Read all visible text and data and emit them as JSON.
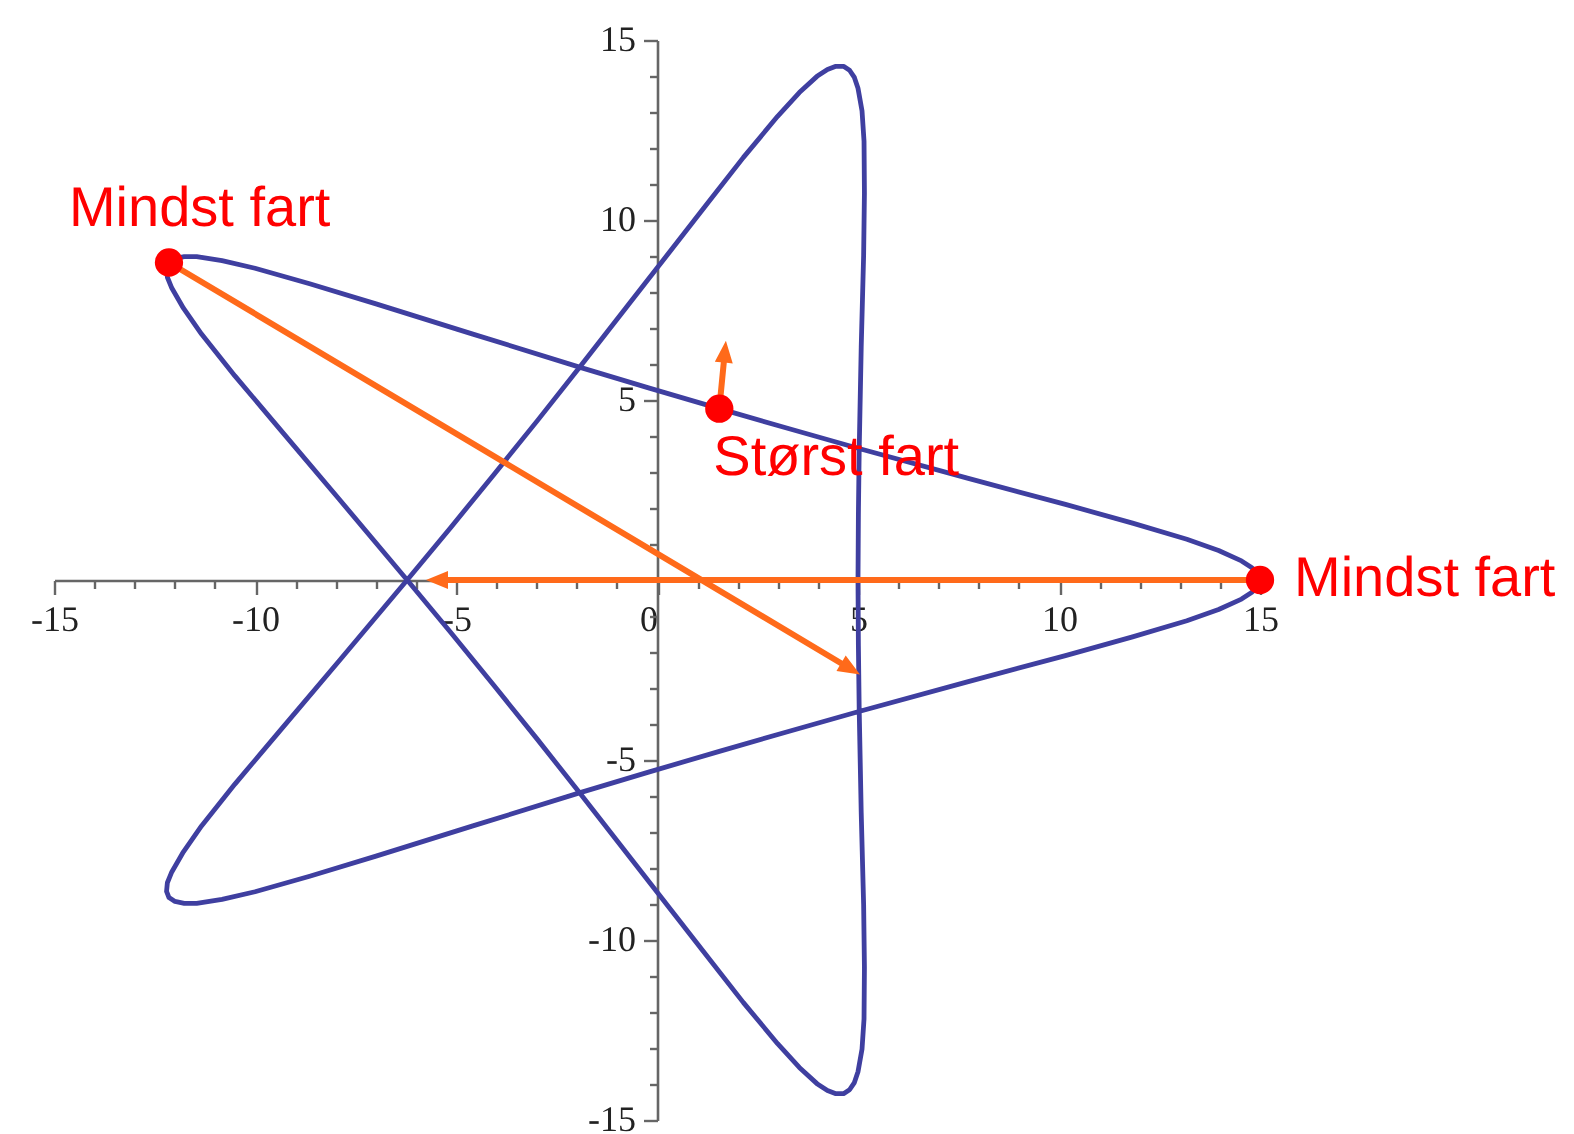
{
  "chart_data": {
    "type": "line",
    "xlim": [
      -15,
      15
    ],
    "ylim": [
      -15,
      15
    ],
    "xticks": [
      -15,
      {
        "value": -14,
        "label": null
      },
      {
        "value": -13,
        "label": null
      },
      {
        "value": -12,
        "label": null
      },
      {
        "value": -11,
        "label": null
      },
      -10,
      {
        "value": -9,
        "label": null
      },
      {
        "value": -8,
        "label": null
      },
      {
        "value": -7,
        "label": null
      },
      {
        "value": -6,
        "label": null
      },
      -5,
      {
        "value": -4,
        "label": null
      },
      {
        "value": -3,
        "label": null
      },
      {
        "value": -2,
        "label": null
      },
      {
        "value": -1,
        "label": null
      },
      0,
      {
        "value": 1,
        "label": null
      },
      {
        "value": 2,
        "label": null
      },
      {
        "value": 3,
        "label": null
      },
      {
        "value": 4,
        "label": null
      },
      5,
      {
        "value": 6,
        "label": null
      },
      {
        "value": 7,
        "label": null
      },
      {
        "value": 8,
        "label": null
      },
      {
        "value": 9,
        "label": null
      },
      10,
      {
        "value": 11,
        "label": null
      },
      {
        "value": 12,
        "label": null
      },
      {
        "value": 13,
        "label": null
      },
      {
        "value": 14,
        "label": null
      },
      15
    ],
    "yticks": [
      -15,
      {
        "value": -14,
        "label": null
      },
      {
        "value": -13,
        "label": null
      },
      {
        "value": -12,
        "label": null
      },
      {
        "value": -11,
        "label": null
      },
      -10,
      {
        "value": -9,
        "label": null
      },
      {
        "value": -8,
        "label": null
      },
      {
        "value": -7,
        "label": null
      },
      {
        "value": -6,
        "label": null
      },
      -5,
      {
        "value": -4,
        "label": null
      },
      {
        "value": -3,
        "label": null
      },
      {
        "value": -2,
        "label": null
      },
      {
        "value": -1,
        "label": null
      },
      {
        "value": 0,
        "label": null
      },
      {
        "value": 1,
        "label": null
      },
      {
        "value": 2,
        "label": null
      },
      {
        "value": 3,
        "label": null
      },
      {
        "value": 4,
        "label": null
      },
      5,
      {
        "value": 6,
        "label": null
      },
      {
        "value": 7,
        "label": null
      },
      {
        "value": 8,
        "label": null
      },
      {
        "value": 9,
        "label": null
      },
      10,
      {
        "value": 11,
        "label": null
      },
      {
        "value": 12,
        "label": null
      },
      {
        "value": 13,
        "label": null
      },
      {
        "value": 14,
        "label": null
      },
      15
    ],
    "series": [
      {
        "color": "#3f3fa0",
        "x": [
          15,
          14.95,
          14.79,
          14.54,
          13.97,
          13.18,
          11.83,
          10.16,
          7.72,
          5.0,
          3.29,
          1.55,
          -0.19,
          -1.89,
          -4.58,
          -6.99,
          -8.64,
          -10.0,
          -10.82,
          -11.45,
          -11.76,
          -11.99,
          -12.14,
          -12.2,
          -12.18,
          -12.07,
          -11.78,
          -11.33,
          -10.5,
          -9.45,
          -7.91,
          -6.2,
          -5.13,
          -4.05,
          -2.98,
          -1.94,
          -0.31,
          1.15,
          2.15,
          3.0,
          3.54,
          3.98,
          4.24,
          4.45,
          4.64,
          4.79,
          4.91,
          5.0,
          5.1,
          5.15,
          5.16,
          5.14,
          5.08,
          5.03,
          5.01,
          5.0,
          5.01,
          5.03,
          5.08,
          5.14,
          5.16,
          5.15,
          5.1,
          5.0,
          4.91,
          4.79,
          4.64,
          4.45,
          4.24,
          3.98,
          3.54,
          3.0,
          2.15,
          1.15,
          -0.31,
          -1.94,
          -2.98,
          -4.05,
          -5.13,
          -6.2,
          -7.91,
          -9.45,
          -10.5,
          -11.33,
          -11.78,
          -12.07,
          -12.18,
          -12.2,
          -12.14,
          -11.99,
          -11.76,
          -11.45,
          -10.82,
          -10.0,
          -8.64,
          -6.99,
          -4.58,
          -1.89,
          -0.19,
          1.55,
          3.29,
          5.0,
          7.72,
          10.16,
          11.83,
          13.18,
          13.97,
          14.54,
          14.79,
          14.95
        ],
        "values": [
          0,
          0.18,
          0.35,
          0.53,
          0.82,
          1.13,
          1.58,
          2.1,
          2.83,
          3.66,
          4.2,
          4.76,
          5.33,
          5.9,
          6.83,
          7.67,
          8.23,
          8.66,
          8.87,
          8.98,
          8.98,
          8.93,
          null,
          8.65,
          8.41,
          8.11,
          7.55,
          6.83,
          5.67,
          4.28,
          2.25,
          -0.02,
          -1.46,
          -2.94,
          -4.42,
          -5.89,
          -8.22,
          -10.31,
          -11.74,
          -12.88,
          -13.54,
          -13.99,
          -14.18,
          -14.27,
          -14.27,
          -14.16,
          -13.96,
          -13.66,
          -13.03,
          -12.19,
          -10.76,
          -9.02,
          -6.47,
          -3.62,
          -1.83,
          0,
          1.83,
          3.62,
          6.47,
          9.02,
          10.76,
          12.19,
          13.03,
          13.66,
          13.96,
          14.16,
          14.27,
          14.27,
          14.18,
          13.99,
          13.54,
          12.88,
          11.74,
          10.31,
          8.22,
          5.89,
          4.42,
          2.94,
          1.46,
          0.02,
          -2.25,
          -4.28,
          -5.67,
          -6.83,
          -7.55,
          -8.11,
          -8.41,
          -8.65,
          -8.82,
          -8.93,
          -8.98,
          -8.98,
          -8.87,
          -8.66,
          -8.23,
          -7.67,
          -6.83,
          -5.9,
          -5.33,
          -4.76,
          -4.2,
          -3.66,
          -2.83,
          -2.1,
          -1.58,
          -1.13,
          -0.82,
          -0.53,
          -0.35,
          -0.18
        ]
      },
      {
        "type": "scatter",
        "color": "#ff0000",
        "marker": "circle",
        "x": [
          -12.14,
          1.55,
          15
        ],
        "values": [
          8.82,
          4.76,
          0
        ]
      }
    ],
    "annotations": [
      {
        "text": "Mindst fart",
        "x": -12.14,
        "y": 8.82
      },
      {
        "text": "Størst fart",
        "x": 1.55,
        "y": 4.76
      },
      {
        "text": "Mindst fart",
        "x": 15,
        "y": 0
      }
    ]
  }
}
